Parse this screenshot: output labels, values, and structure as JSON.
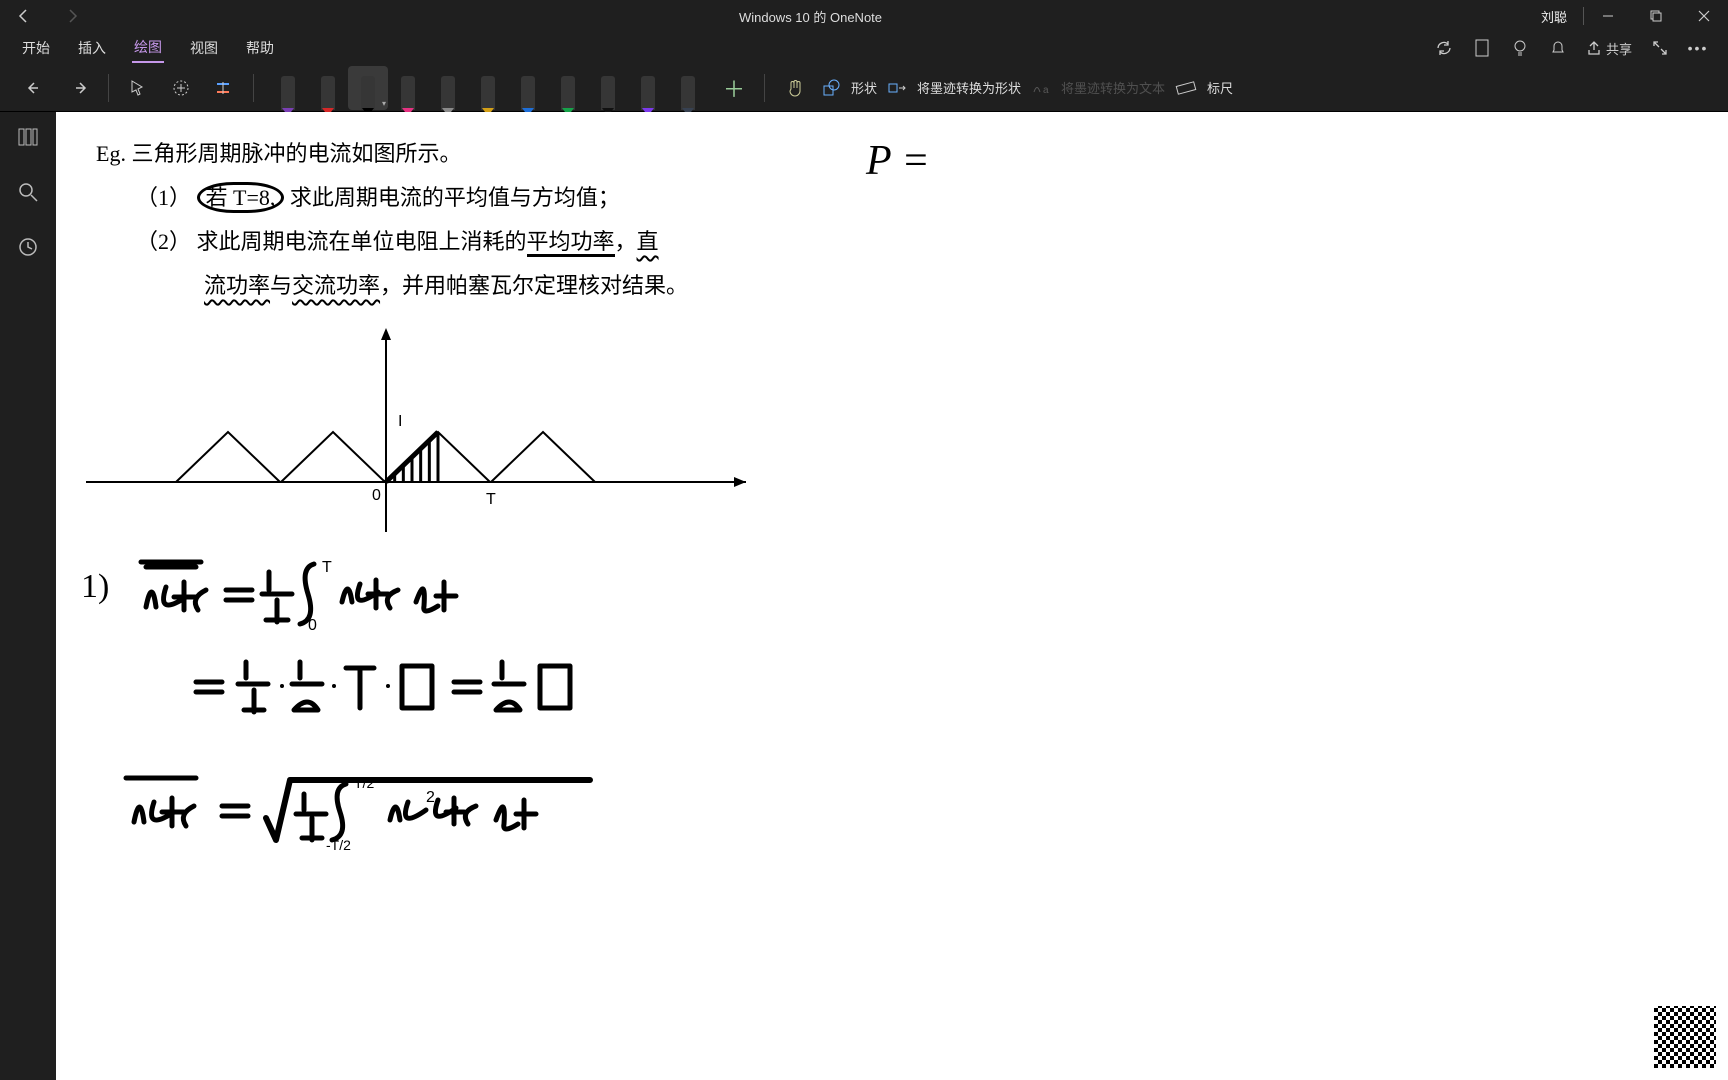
{
  "title": "Windows 10 的 OneNote",
  "user": "刘聪",
  "menu": {
    "items": [
      "开始",
      "插入",
      "绘图",
      "视图",
      "帮助"
    ],
    "active_index": 2
  },
  "share_label": "共享",
  "toolbar": {
    "shapes_label": "形状",
    "ink_to_shape_label": "将墨迹转换为形状",
    "ink_to_text_label": "将墨迹转换为文本",
    "ruler_label": "标尺",
    "pens": [
      {
        "body": "#363636",
        "tip": "#7a3fb5",
        "selected": false
      },
      {
        "body": "#363636",
        "tip": "#d62828",
        "selected": false
      },
      {
        "body": "#363636",
        "tip": "#000000",
        "selected": true
      },
      {
        "body": "#363636",
        "tip": "#e63282",
        "selected": false
      },
      {
        "body": "#363636",
        "tip": "#8a8a8a",
        "selected": false
      },
      {
        "body": "#363636",
        "tip": "#d4a017",
        "selected": false
      },
      {
        "body": "#363636",
        "tip": "#1e6fd9",
        "selected": false
      },
      {
        "body": "#363636",
        "tip": "#16a34a",
        "selected": false
      },
      {
        "body": "#363636",
        "tip": "#111111",
        "selected": false
      },
      {
        "body": "#363636",
        "tip": "#7c3aed",
        "selected": false
      },
      {
        "body": "#363636",
        "tip": "#374151",
        "selected": false
      }
    ]
  },
  "problem": {
    "head": "Eg. 三角形周期脉冲的电流如图所示。",
    "l1_a": "（1）",
    "l1_circ": "若 T=8,",
    "l1_b": " 求此周期电流的平均值与方均值；",
    "l2_a": "（2）  求此周期电流在单位电阻上消耗的",
    "l2_u1": "平均功率",
    "l2_b": "，",
    "l2_u2": "直",
    "l3_u1": "流功率",
    "l3_mid": "与",
    "l3_u2": "交流功率",
    "l3_tail": "，并用帕塞瓦尔定理核对结果。"
  },
  "p_equals": "P =",
  "diagram": {
    "axis_color": "#000000",
    "origin_label": "0",
    "I_label": "I",
    "T_label": "T",
    "triangles_x": [
      -210,
      -105,
      0,
      105
    ],
    "tri_half": 52,
    "tri_h": 50
  },
  "eq1": "1)  i(t) = (1/T) ∫₀ᵀ i(t) dt",
  "eq2": "     = (1/T)·(1/2)·T·I = (1/2) I",
  "eq3": "i(t) = √( (1/T) ∫_{-T/2}^{T/2} i²(t) dt )"
}
